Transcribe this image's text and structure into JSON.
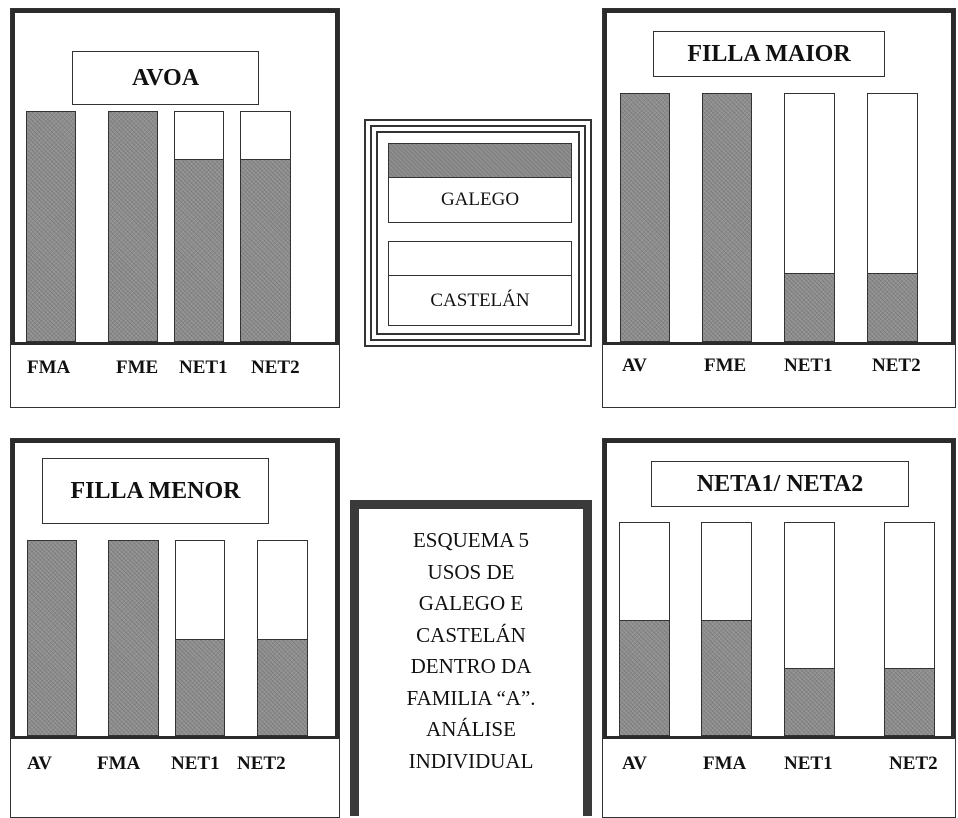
{
  "chart_data": [
    {
      "type": "bar",
      "title": "AVOA",
      "categories": [
        "FMA",
        "FME",
        "NET1",
        "NET2"
      ],
      "series": [
        {
          "name": "GALEGO",
          "values": [
            100,
            100,
            79,
            79
          ]
        },
        {
          "name": "CASTELÁN",
          "values": [
            0,
            0,
            21,
            21
          ]
        }
      ],
      "stacked": true,
      "ylim": [
        0,
        100
      ]
    },
    {
      "type": "bar",
      "title": "FILLA MAIOR",
      "categories": [
        "AV",
        "FME",
        "NET1",
        "NET2"
      ],
      "series": [
        {
          "name": "GALEGO",
          "values": [
            100,
            100,
            27,
            27
          ]
        },
        {
          "name": "CASTELÁN",
          "values": [
            0,
            0,
            73,
            73
          ]
        }
      ],
      "stacked": true,
      "ylim": [
        0,
        100
      ]
    },
    {
      "type": "bar",
      "title": "FILLA MENOR",
      "categories": [
        "AV",
        "FMA",
        "NET1",
        "NET2"
      ],
      "series": [
        {
          "name": "GALEGO",
          "values": [
            100,
            100,
            49,
            49
          ]
        },
        {
          "name": "CASTELÁN",
          "values": [
            0,
            0,
            51,
            51
          ]
        }
      ],
      "stacked": true,
      "ylim": [
        0,
        100
      ]
    },
    {
      "type": "bar",
      "title": "NETA1/ NETA2",
      "categories": [
        "AV",
        "FMA",
        "NET1",
        "NET2"
      ],
      "series": [
        {
          "name": "GALEGO",
          "values": [
            54,
            54,
            31,
            31
          ]
        },
        {
          "name": "CASTELÁN",
          "values": [
            46,
            46,
            69,
            69
          ]
        }
      ],
      "stacked": true,
      "ylim": [
        0,
        100
      ]
    }
  ],
  "legend": {
    "galego_label": "GALEGO",
    "castelan_label": "CASTELÁN",
    "galego_color": "#8e8e8e",
    "castelan_color": "#ffffff"
  },
  "caption": {
    "lines": [
      "ESQUEMA 5",
      "USOS DE",
      "GALEGO E",
      "CASTELÁN",
      "DENTRO DA",
      "FAMILIA “A”.",
      "ANÁLISE",
      "INDIVIDUAL"
    ]
  }
}
